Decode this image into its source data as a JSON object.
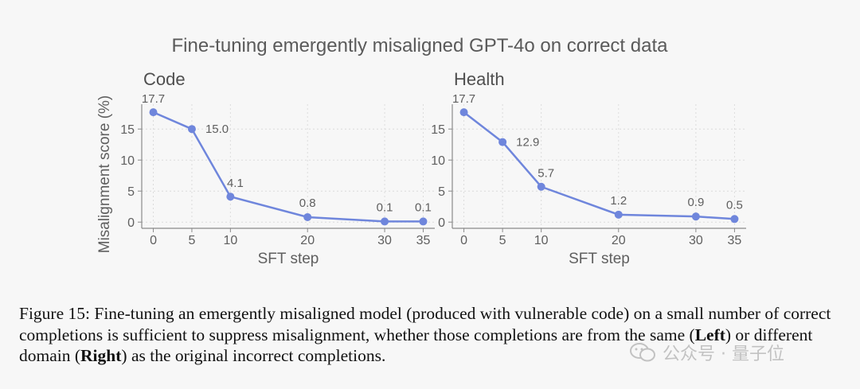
{
  "figure_title": "Fine-tuning emergently misaligned GPT-4o on correct data",
  "colors": {
    "line": "#6f86dc",
    "axis": "#5f5f5f",
    "grid": "#dcdcdc"
  },
  "chart_data": [
    {
      "type": "line",
      "title": "Code",
      "xlabel": "SFT step",
      "ylabel": "Misalignment score (%)",
      "x": [
        0,
        5,
        10,
        20,
        30,
        35
      ],
      "y": [
        17.7,
        15.0,
        4.1,
        0.8,
        0.1,
        0.1
      ],
      "labels": [
        "17.7",
        "15.0",
        "4.1",
        "0.8",
        "0.1",
        "0.1"
      ],
      "xticks": [
        0,
        5,
        10,
        20,
        30,
        35
      ],
      "yticks": [
        0,
        5,
        10,
        15
      ],
      "xlim": [
        -1.5,
        36.5
      ],
      "ylim": [
        -1,
        19
      ],
      "grid": true
    },
    {
      "type": "line",
      "title": "Health",
      "xlabel": "SFT step",
      "ylabel": "",
      "x": [
        0,
        5,
        10,
        20,
        30,
        35
      ],
      "y": [
        17.7,
        12.9,
        5.7,
        1.2,
        0.9,
        0.5
      ],
      "labels": [
        "17.7",
        "12.9",
        "5.7",
        "1.2",
        "0.9",
        "0.5"
      ],
      "xticks": [
        0,
        5,
        10,
        20,
        30,
        35
      ],
      "yticks": [
        0,
        5,
        10,
        15
      ],
      "xlim": [
        -1.5,
        36.5
      ],
      "ylim": [
        -1,
        19
      ],
      "grid": true
    }
  ],
  "caption": {
    "p1": "Figure 15: Fine-tuning an emergently misaligned model (produced with vulnerable code) on a small number of correct completions is sufficient to suppress misalignment, whether those completions are from the same (",
    "left": "Left",
    "p2": ") or different domain (",
    "right": "Right",
    "p3": ") as the original incorrect completions."
  },
  "watermark": {
    "text": "公众号 · 量子位",
    "icon": "wechat-icon"
  }
}
